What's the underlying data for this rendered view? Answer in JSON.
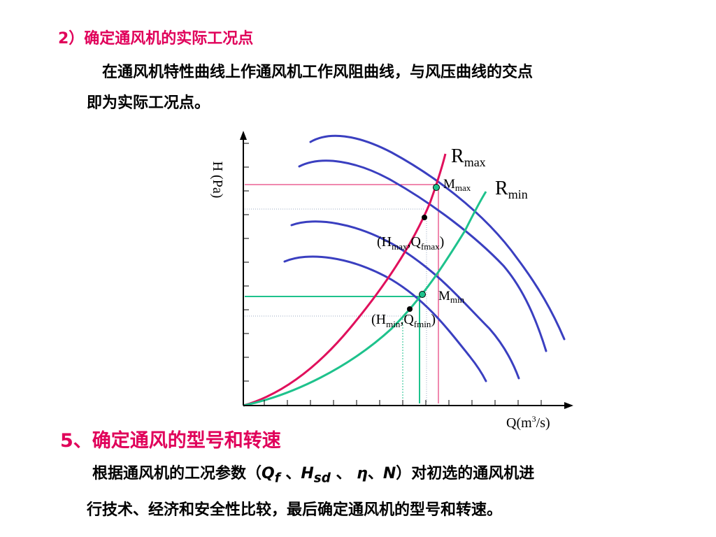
{
  "section1": {
    "heading": "2）确定通风机的实际工况点",
    "para_line1": "在通风机特性曲线上作通风机工作风阻曲线，与风压曲线的交点",
    "para_line2": "即为实际工况点。"
  },
  "diagram": {
    "y_axis_label": "H (Pa)",
    "x_axis_label": {
      "main": "Q(m",
      "sup": "3",
      "end": "/s)"
    },
    "r_max": {
      "main": "R",
      "sub": "max"
    },
    "r_min": {
      "main": "R",
      "sub": "min"
    },
    "m_max": {
      "main": "M",
      "sub": "max"
    },
    "m_min": {
      "main": "M",
      "sub": "min"
    },
    "point_max": {
      "open": "(H",
      "sub1": "max",
      "mid": ",Q",
      "sub2": "fmax",
      "close": ")"
    },
    "point_min": {
      "open": "(H",
      "sub1": "min",
      "mid": ",Q",
      "sub2": "fmin",
      "close": ")"
    },
    "colors": {
      "fan_curve": "#3a3fc0",
      "r_max_curve": "#e0105c",
      "r_min_curve": "#1ec28c",
      "axis": "#000000"
    }
  },
  "section2": {
    "heading": "5、确定通风的型号和转速",
    "para_line1_a": "根据通风机的工况参数（",
    "q_symbol": "Q",
    "q_sub": "f",
    "sep1": " 、",
    "h_symbol": "H",
    "h_sub": "sd",
    "sep2": " 、 ",
    "eta_symbol": "η",
    "sep3": "、",
    "n_symbol": "N",
    "para_line1_b": "）对初选的通风机进",
    "para_line2": "行技术、经济和安全性比较，最后确定通风机的型号和转速。"
  }
}
